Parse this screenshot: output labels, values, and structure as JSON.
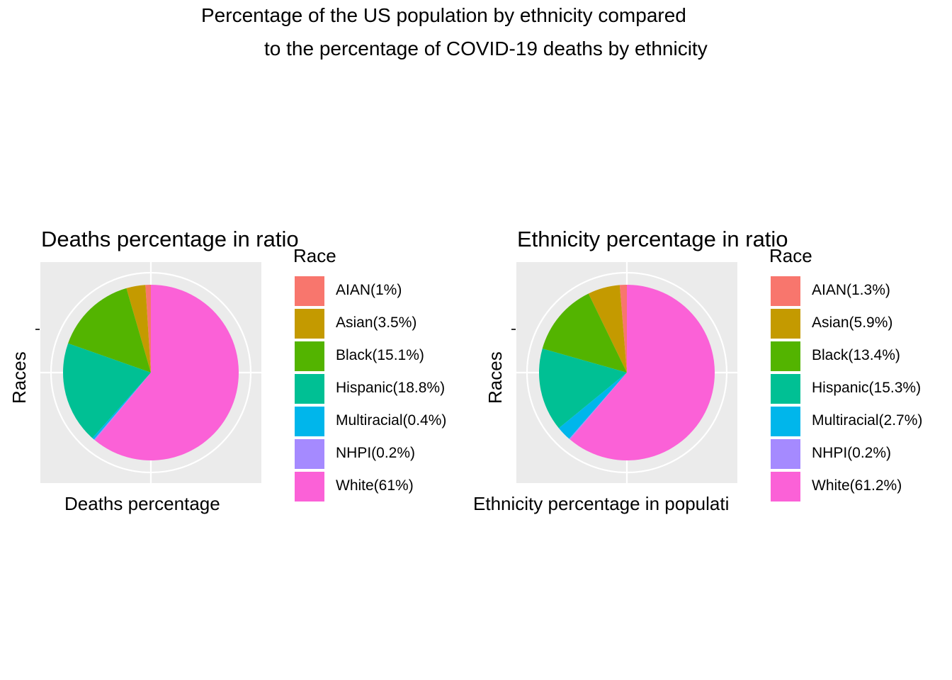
{
  "title_lines": [
    "Percentage of the US population by ethnicity compared",
    "to the percentage of COVID-19 deaths by ethnicity"
  ],
  "chart_data": [
    {
      "type": "pie",
      "title": "Deaths percentage in ratio",
      "xlabel": "Deaths percentage",
      "ylabel": "Races",
      "legend_title": "Race",
      "legend_position": "right",
      "categories": [
        "AIAN(1%)",
        "Asian(3.5%)",
        "Black(15.1%)",
        "Hispanic(18.8%)",
        "Multiracial(0.4%)",
        "NHPI(0.2%)",
        "White(61%)"
      ],
      "values": [
        1,
        3.5,
        15.1,
        18.8,
        0.4,
        0.2,
        61
      ],
      "colors": [
        "#F8766D",
        "#C49A00",
        "#53B400",
        "#00C094",
        "#00B6EB",
        "#A58AFF",
        "#FB61D7"
      ]
    },
    {
      "type": "pie",
      "title": "Ethnicity percentage in ratio",
      "xlabel": "Ethnicity percentage in populati",
      "ylabel": "Races",
      "legend_title": "Race",
      "legend_position": "right",
      "categories": [
        "AIAN(1.3%)",
        "Asian(5.9%)",
        "Black(13.4%)",
        "Hispanic(15.3%)",
        "Multiracial(2.7%)",
        "NHPI(0.2%)",
        "White(61.2%)"
      ],
      "values": [
        1.3,
        5.9,
        13.4,
        15.3,
        2.7,
        0.2,
        61.2
      ],
      "colors": [
        "#F8766D",
        "#C49A00",
        "#53B400",
        "#00C094",
        "#00B6EB",
        "#A58AFF",
        "#FB61D7"
      ]
    }
  ]
}
